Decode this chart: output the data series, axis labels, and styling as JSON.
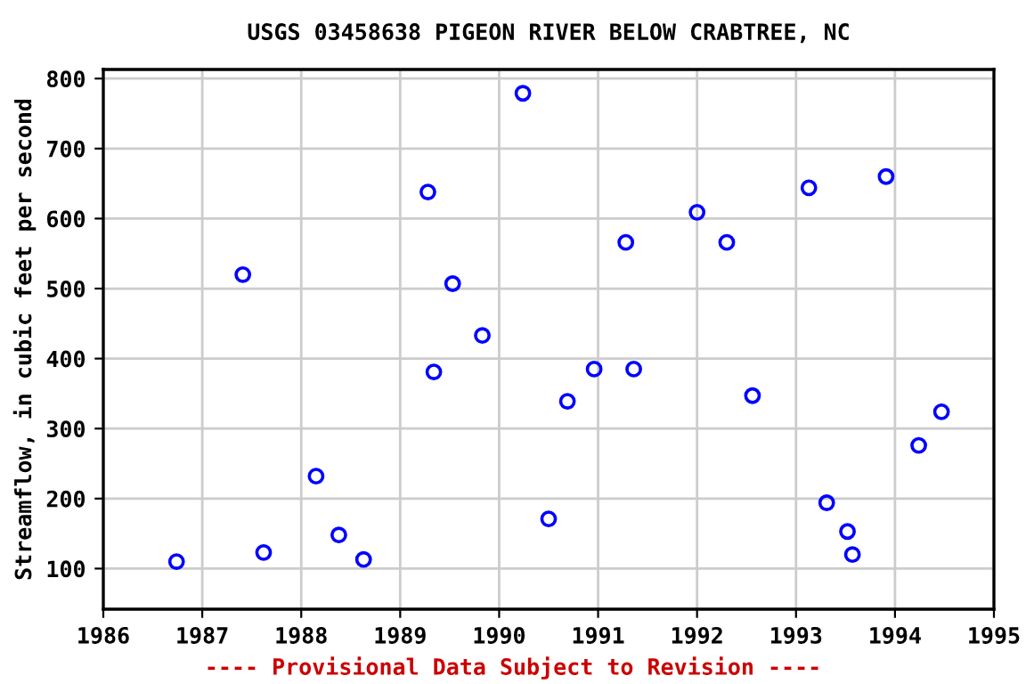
{
  "chart_data": {
    "type": "scatter",
    "title": "USGS 03458638 PIGEON RIVER BELOW CRABTREE, NC",
    "ylabel": "Streamflow, in cubic feet per second",
    "annotations": [
      "---- Provisional Data Subject to Revision ----"
    ],
    "x": [
      1986.74,
      1987.41,
      1987.62,
      1988.15,
      1988.38,
      1988.63,
      1989.28,
      1989.34,
      1989.53,
      1989.83,
      1990.24,
      1990.5,
      1990.69,
      1990.96,
      1991.28,
      1991.36,
      1992.0,
      1992.3,
      1992.56,
      1993.13,
      1993.31,
      1993.52,
      1993.57,
      1993.91,
      1994.24,
      1994.47
    ],
    "series": [
      {
        "color": "#0000ff",
        "values": [
          110,
          520,
          123,
          232,
          148,
          113,
          638,
          381,
          507,
          433,
          779,
          171,
          339,
          385,
          566,
          385,
          609,
          566,
          347,
          644,
          194,
          153,
          120,
          660,
          276,
          324
        ]
      }
    ],
    "xlim": [
      1986,
      1995
    ],
    "xticks": [
      1986,
      1987,
      1988,
      1989,
      1990,
      1991,
      1992,
      1993,
      1994,
      1995
    ],
    "ylim": [
      42,
      813
    ],
    "yticks": [
      100,
      200,
      300,
      400,
      500,
      600,
      700,
      800
    ],
    "grid": true,
    "marker": "circle",
    "legend": false
  }
}
